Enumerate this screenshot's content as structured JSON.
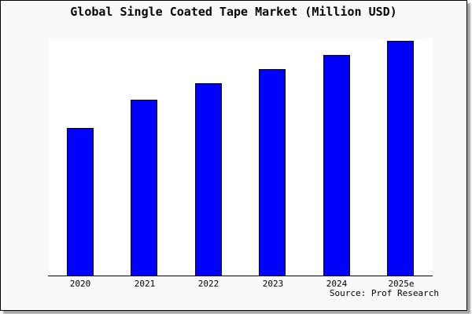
{
  "title": "Global Single Coated Tape Market (Million USD)",
  "source": "Source: Prof Research",
  "chart_data": {
    "type": "bar",
    "title": "Global Single Coated Tape Market (Million USD)",
    "categories": [
      "2020",
      "2021",
      "2022",
      "2023",
      "2024",
      "2025e"
    ],
    "values": [
      63,
      75,
      82,
      88,
      94,
      100
    ],
    "xlabel": "",
    "ylabel": "",
    "ylim": [
      0,
      101
    ],
    "grid": false,
    "legend": "none",
    "y_axis_ticks_visible": false,
    "note": "Chart shows no y-axis tick labels; values are relative bar heights normalized to 2025e = 100",
    "bar_color": "#0000FF",
    "bar_border_color": "#000000"
  },
  "colors": {
    "figure_background": "#F9F9F9",
    "plot_background": "#FFFFFF",
    "frame_border": "#000000",
    "shadow": "#A3A3A3",
    "text": "#000000"
  }
}
